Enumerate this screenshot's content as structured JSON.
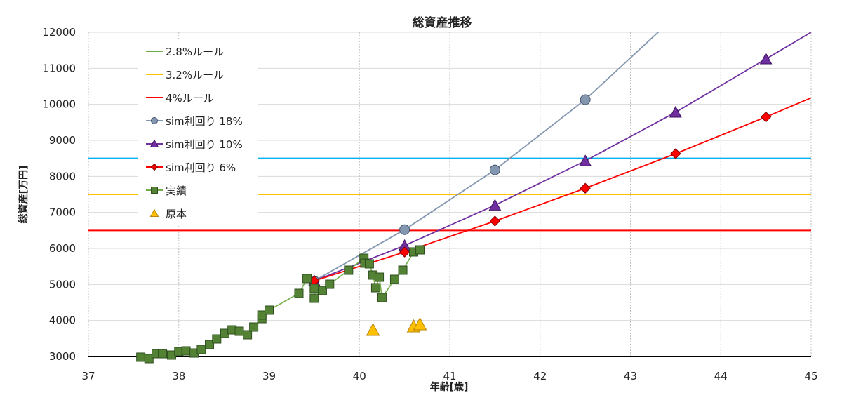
{
  "chart_data": {
    "type": "line",
    "title": "総資産推移",
    "xlabel": "年齢[歳]",
    "ylabel": "総資産[万円]",
    "xlim": [
      37,
      45
    ],
    "ylim": [
      3000,
      12000
    ],
    "xticks": [
      37,
      38,
      39,
      40,
      41,
      42,
      43,
      44,
      45
    ],
    "yticks": [
      3000,
      4000,
      5000,
      6000,
      7000,
      8000,
      9000,
      10000,
      11000,
      12000
    ],
    "grid": true,
    "legend_position": "top-left",
    "hlines": [
      {
        "name": "2.8%ルール",
        "value": 8500,
        "color": "#00B0F0",
        "legend_color": "#70AD47"
      },
      {
        "name": "3.2%ルール",
        "value": 7500,
        "color": "#FFC000"
      },
      {
        "name": "4%ルール",
        "value": 6500,
        "color": "#FF0000"
      }
    ],
    "series": [
      {
        "name": "sim利回り 18%",
        "color": "#8497B0",
        "marker": "circle",
        "x": [
          39.5,
          40.5,
          41.5,
          42.5
        ],
        "y": [
          5100,
          6520,
          8180,
          10130
        ],
        "extend": [
          43.5,
          12450
        ]
      },
      {
        "name": "sim利回り 10%",
        "color": "#7030A0",
        "marker": "triangle",
        "x": [
          39.5,
          40.5,
          41.5,
          42.5,
          43.5,
          44.5
        ],
        "y": [
          5100,
          6080,
          7200,
          8430,
          9780,
          11260
        ],
        "extend": [
          45,
          12000
        ]
      },
      {
        "name": "sim利回り 6%",
        "color": "#FF0000",
        "marker": "diamond",
        "x": [
          39.5,
          40.5,
          41.5,
          42.5,
          43.5,
          44.5
        ],
        "y": [
          5100,
          5900,
          6760,
          7670,
          8630,
          9650
        ],
        "extend": [
          45,
          10180
        ]
      },
      {
        "name": "実績",
        "color": "#548235",
        "line_color": "#70AD47",
        "marker": "square",
        "x": [
          37.58,
          37.67,
          37.75,
          37.82,
          37.92,
          38.0,
          38.08,
          38.17,
          38.25,
          38.34,
          38.42,
          38.51,
          38.59,
          38.67,
          38.76,
          38.83,
          38.92,
          38.92,
          39.0,
          39.33,
          39.42,
          39.5,
          39.5,
          39.59,
          39.67,
          39.88,
          40.05,
          40.06,
          40.11,
          40.15,
          40.18,
          40.22,
          40.25,
          40.39,
          40.48,
          40.6,
          40.67
        ],
        "y": [
          2981,
          2942,
          3078,
          3078,
          3039,
          3136,
          3156,
          3097,
          3195,
          3331,
          3487,
          3643,
          3740,
          3701,
          3604,
          3818,
          4052,
          4150,
          4286,
          4753,
          5163,
          4890,
          4617,
          4831,
          5006,
          5396,
          5727,
          5591,
          5572,
          5260,
          4909,
          5201,
          4636,
          5143,
          5396,
          5903,
          5961
        ]
      },
      {
        "name": "原本",
        "color": "#FFC000",
        "marker": "triangle",
        "line": false,
        "x": [
          40.15,
          40.6,
          40.67
        ],
        "y": [
          3740,
          3838,
          3896
        ]
      }
    ]
  }
}
